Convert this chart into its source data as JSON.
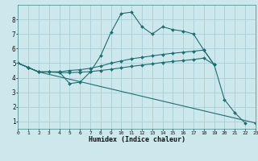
{
  "background_color": "#cde8ed",
  "grid_color": "#aacdd6",
  "line_color": "#1e6e6e",
  "xlabel": "Humidex (Indice chaleur)",
  "xlim": [
    0,
    23
  ],
  "ylim": [
    0.5,
    9.0
  ],
  "xticks": [
    0,
    1,
    2,
    3,
    4,
    5,
    6,
    7,
    8,
    9,
    10,
    11,
    12,
    13,
    14,
    15,
    16,
    17,
    18,
    19,
    20,
    21,
    22,
    23
  ],
  "yticks": [
    1,
    2,
    3,
    4,
    5,
    6,
    7,
    8
  ],
  "line1_x": [
    0,
    1,
    2,
    3,
    4,
    5,
    6,
    7,
    8,
    9,
    10,
    11,
    12,
    13,
    14,
    15,
    16,
    17,
    18,
    19,
    20,
    21,
    22
  ],
  "line1_y": [
    5.0,
    4.7,
    4.4,
    4.4,
    4.4,
    3.6,
    3.7,
    4.4,
    5.5,
    7.1,
    8.4,
    8.5,
    7.5,
    7.0,
    7.5,
    7.3,
    7.2,
    7.0,
    5.9,
    4.9,
    2.5,
    1.6,
    0.9
  ],
  "line2_x": [
    0,
    1,
    2,
    3,
    4,
    5,
    6,
    7,
    8,
    9,
    10,
    11,
    12,
    13,
    14,
    15,
    16,
    17,
    18,
    19
  ],
  "line2_y": [
    5.0,
    4.7,
    4.4,
    4.4,
    4.4,
    4.5,
    4.55,
    4.65,
    4.8,
    5.0,
    5.15,
    5.3,
    5.4,
    5.5,
    5.6,
    5.68,
    5.75,
    5.82,
    5.9,
    4.9
  ],
  "line3_x": [
    0,
    1,
    2,
    3,
    4,
    5,
    6,
    7,
    8,
    9,
    10,
    11,
    12,
    13,
    14,
    15,
    16,
    17,
    18,
    19
  ],
  "line3_y": [
    5.0,
    4.7,
    4.4,
    4.4,
    4.35,
    4.35,
    4.38,
    4.42,
    4.5,
    4.58,
    4.68,
    4.78,
    4.87,
    4.95,
    5.05,
    5.12,
    5.18,
    5.25,
    5.35,
    4.9
  ],
  "line4_x": [
    0,
    2,
    23
  ],
  "line4_y": [
    5.0,
    4.4,
    0.9
  ]
}
